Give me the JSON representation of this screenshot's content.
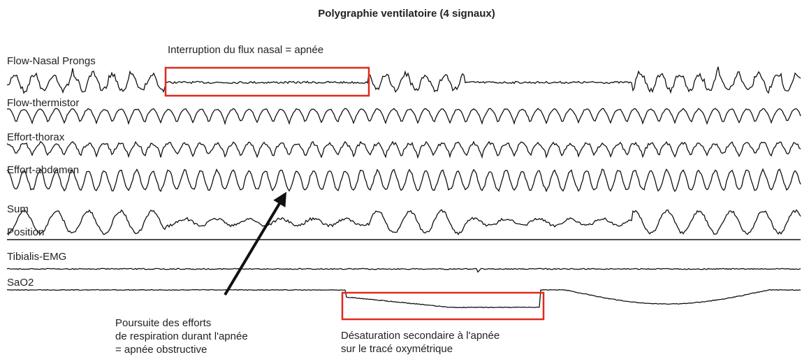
{
  "title": "Polygraphie ventilatoire (4 signaux)",
  "channels": [
    {
      "label": "Flow-Nasal Prongs"
    },
    {
      "label": "Flow-thermistor"
    },
    {
      "label": "Effort-thorax"
    },
    {
      "label": "Effort-abdomen"
    },
    {
      "label": "Sum"
    },
    {
      "label": "Position"
    },
    {
      "label": "Tibialis-EMG"
    },
    {
      "label": "SaO2"
    }
  ],
  "annotations": {
    "apnea": "Interruption du flux nasal = apnée",
    "efforts": [
      "Poursuite des efforts",
      "de respiration durant l'apnée",
      "= apnée obstructive"
    ],
    "desaturation": [
      "Désaturation secondaire à l'apnée",
      "sur le tracé oxymétrique"
    ]
  }
}
